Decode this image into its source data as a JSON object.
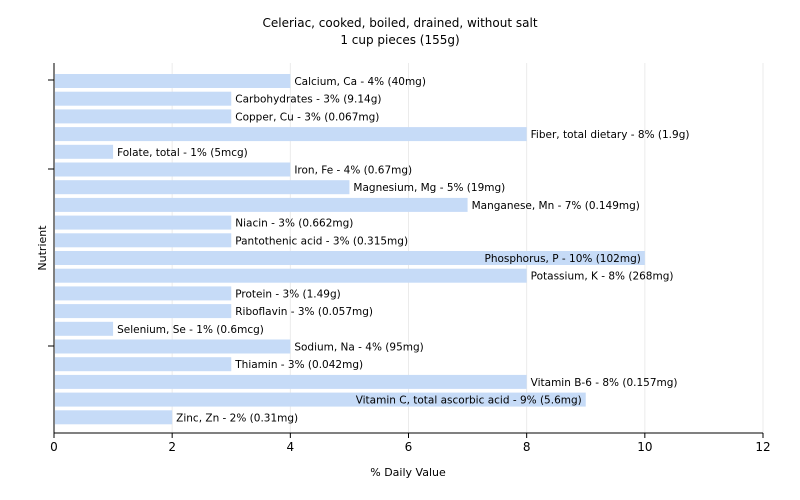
{
  "chart_data": {
    "type": "bar",
    "orientation": "horizontal",
    "title": "Celeriac, cooked, boiled, drained, without salt",
    "subtitle": "1 cup pieces (155g)",
    "xlabel": "% Daily Value",
    "ylabel": "Nutrient",
    "xlim": [
      0,
      12
    ],
    "xticks": [
      "0",
      "2",
      "4",
      "6",
      "8",
      "10",
      "12"
    ],
    "grid": true,
    "bar_color": "#c6dbf7",
    "categories": [
      "Calcium, Ca",
      "Carbohydrates",
      "Copper, Cu",
      "Fiber, total dietary",
      "Folate, total",
      "Iron, Fe",
      "Magnesium, Mg",
      "Manganese, Mn",
      "Niacin",
      "Pantothenic acid",
      "Phosphorus, P",
      "Potassium, K",
      "Protein",
      "Riboflavin",
      "Selenium, Se",
      "Sodium, Na",
      "Thiamin",
      "Vitamin B-6",
      "Vitamin C, total ascorbic acid",
      "Zinc, Zn"
    ],
    "values": [
      4,
      3,
      3,
      8,
      1,
      4,
      5,
      7,
      3,
      3,
      10,
      8,
      3,
      3,
      1,
      4,
      3,
      8,
      9,
      2
    ],
    "labels": [
      "Calcium, Ca - 4% (40mg)",
      "Carbohydrates - 3% (9.14g)",
      "Copper, Cu - 3% (0.067mg)",
      "Fiber, total dietary - 8% (1.9g)",
      "Folate, total - 1% (5mcg)",
      "Iron, Fe - 4% (0.67mg)",
      "Magnesium, Mg - 5% (19mg)",
      "Manganese, Mn - 7% (0.149mg)",
      "Niacin - 3% (0.662mg)",
      "Pantothenic acid - 3% (0.315mg)",
      "Phosphorus, P - 10% (102mg)",
      "Potassium, K - 8% (268mg)",
      "Protein - 3% (1.49g)",
      "Riboflavin - 3% (0.057mg)",
      "Selenium, Se - 1% (0.6mcg)",
      "Sodium, Na - 4% (95mg)",
      "Thiamin - 3% (0.042mg)",
      "Vitamin B-6 - 8% (0.157mg)",
      "Vitamin C, total ascorbic acid - 9% (5.6mg)",
      "Zinc, Zn - 2% (0.31mg)"
    ]
  }
}
